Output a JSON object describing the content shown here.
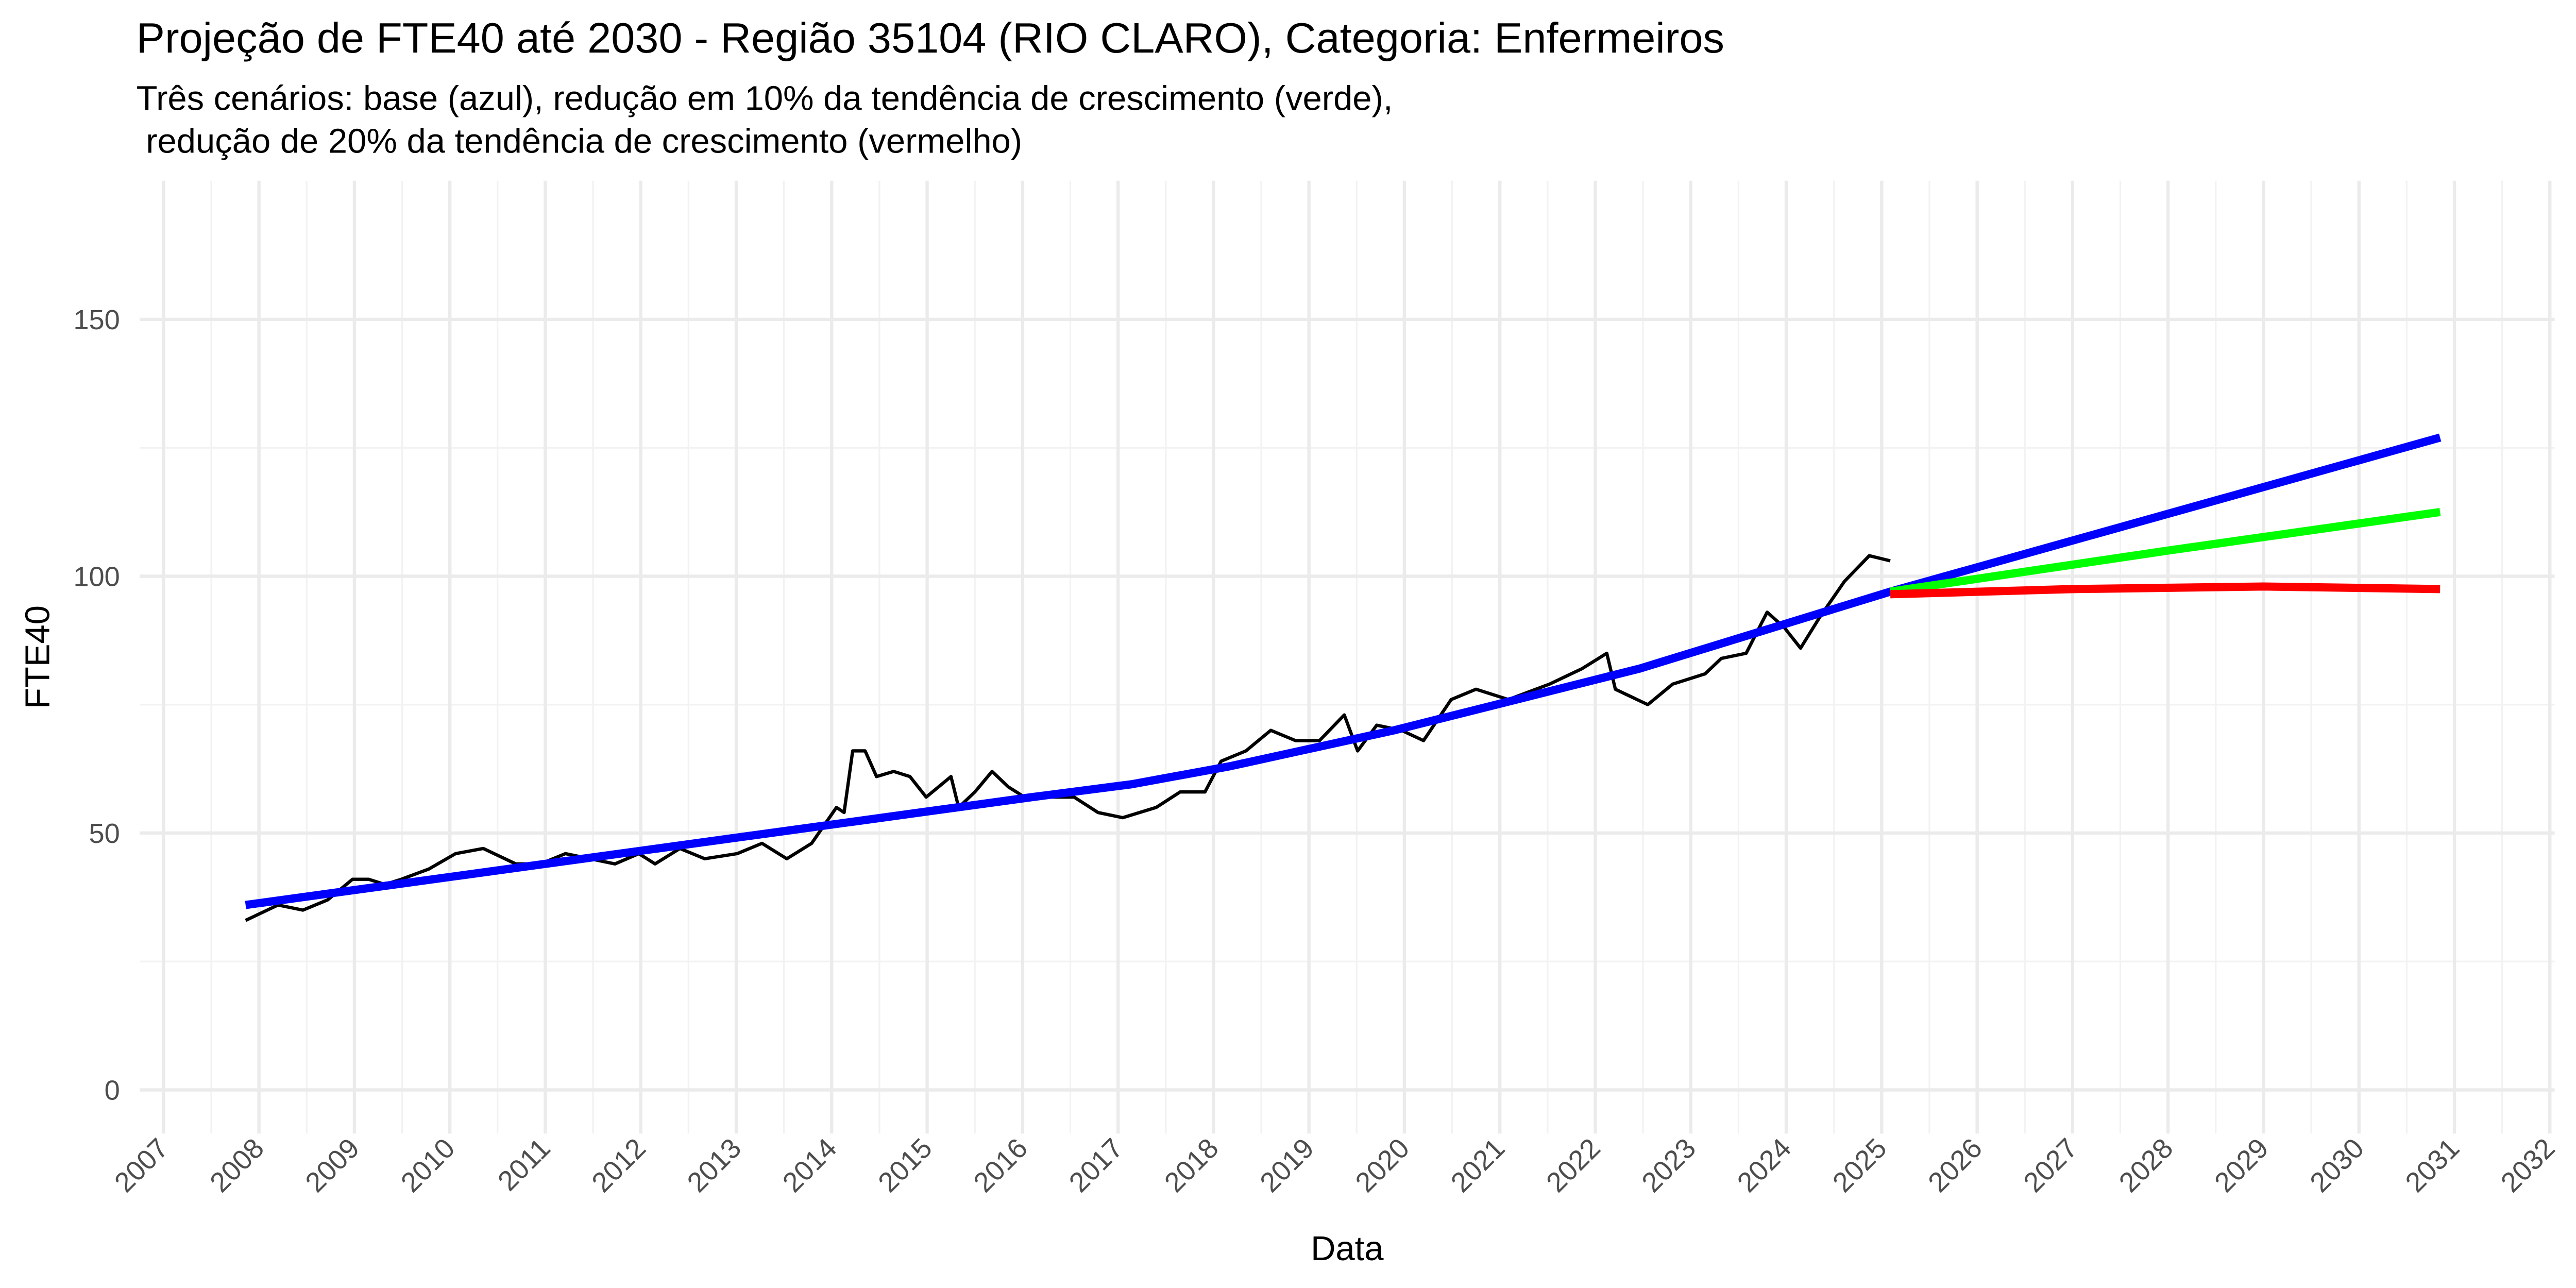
{
  "chart_data": {
    "type": "line",
    "title": "Projeção de FTE40 até 2030 - Região 35104 (RIO CLARO), Categoria: Enfermeiros",
    "subtitle": [
      "Três cenários: base (azul), redução em 10% da tendência de crescimento (verde),",
      " redução de 20% da tendência de crescimento (vermelho)"
    ],
    "xlabel": "Data",
    "ylabel": "FTE40",
    "xlim": [
      2006.75,
      2032.05
    ],
    "ylim": [
      -8.5,
      177
    ],
    "xticks": [
      2007,
      2008,
      2009,
      2010,
      2011,
      2012,
      2013,
      2014,
      2015,
      2016,
      2017,
      2018,
      2019,
      2020,
      2021,
      2022,
      2023,
      2024,
      2025,
      2026,
      2027,
      2028,
      2029,
      2030,
      2031,
      2032
    ],
    "yticks": [
      0,
      50,
      100,
      150
    ],
    "grid": true,
    "series": [
      {
        "color": "#000000",
        "width": 2,
        "x": [
          2007.86,
          2008.2,
          2008.46,
          2008.72,
          2008.98,
          2009.15,
          2009.32,
          2009.49,
          2009.78,
          2010.06,
          2010.35,
          2010.69,
          2010.95,
          2011.21,
          2011.47,
          2011.73,
          2011.98,
          2012.15,
          2012.41,
          2012.67,
          2013.01,
          2013.27,
          2013.53,
          2013.79,
          2014.05,
          2014.13,
          2014.22,
          2014.35,
          2014.47,
          2014.65,
          2014.82,
          2014.99,
          2015.25,
          2015.33,
          2015.5,
          2015.68,
          2015.85,
          2016.02,
          2016.28,
          2016.54,
          2016.79,
          2017.05,
          2017.4,
          2017.65,
          2017.91,
          2018.08,
          2018.34,
          2018.6,
          2018.86,
          2019.11,
          2019.37,
          2019.51,
          2019.71,
          2019.97,
          2020.2,
          2020.49,
          2020.75,
          2021.09,
          2021.52,
          2021.86,
          2022.12,
          2022.21,
          2022.55,
          2022.81,
          2023.15,
          2023.32,
          2023.58,
          2023.8,
          2023.98,
          2024.15,
          2024.35,
          2024.61,
          2024.87,
          2025.09
        ],
        "values": [
          33,
          36,
          35,
          37,
          41,
          41,
          40,
          41,
          43,
          46,
          47,
          44,
          44,
          46,
          45,
          44,
          46,
          44,
          47,
          45,
          46,
          48,
          45,
          48,
          55,
          54,
          66,
          66,
          61,
          62,
          61,
          57,
          61,
          55,
          58,
          62,
          59,
          57,
          57,
          57,
          54,
          53,
          55,
          58,
          58,
          64,
          66,
          70,
          68,
          68,
          73,
          66,
          71,
          70,
          68,
          76,
          78,
          76,
          79,
          82,
          85,
          78,
          75,
          79,
          81,
          84,
          85,
          93,
          90,
          86,
          92,
          99,
          104,
          103
        ]
      },
      {
        "color": "#0000ff",
        "width": 5,
        "x": [
          2007.86,
          2016.1,
          2017.14,
          2018.17,
          2019.89,
          2022.46,
          2025.09,
          2030.85
        ],
        "values": [
          36,
          57,
          59.5,
          63,
          70,
          82,
          97,
          127
        ]
      },
      {
        "color": "#00ff00",
        "width": 5,
        "x": [
          2025.09,
          2028,
          2030.85
        ],
        "values": [
          97,
          105,
          112.5
        ]
      },
      {
        "color": "#ff0000",
        "width": 5,
        "x": [
          2025.09,
          2027,
          2029,
          2030.85
        ],
        "values": [
          96.5,
          97.5,
          98,
          97.5
        ]
      }
    ]
  }
}
